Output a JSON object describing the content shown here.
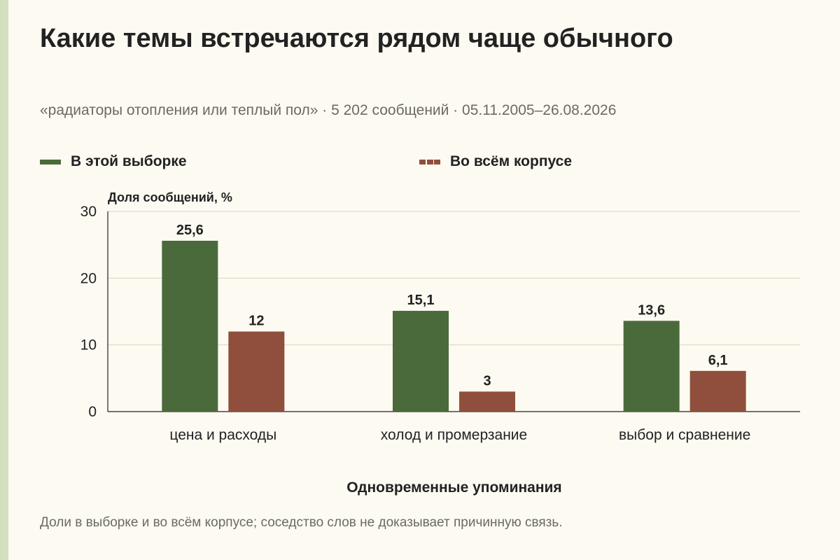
{
  "title": "Какие темы встречаются рядом чаще обычного",
  "subtitle": "«радиаторы отопления или теплый пол» · 5 202 сообщений · 05.11.2005–26.08.2026",
  "footnote": "Доли в выборке и во всём корпусе; соседство слов не доказывает причинную связь.",
  "colors": {
    "sample": "#4a6a3b",
    "corpus": "#8f4f3c",
    "accent_bar": "#d3dfbf"
  },
  "chart_data": {
    "type": "bar",
    "categories": [
      "цена и расходы",
      "холод и промерзание",
      "выбор и сравнение"
    ],
    "series": [
      {
        "name": "В этой выборке",
        "values": [
          25.6,
          15.1,
          13.6
        ],
        "labels": [
          "25,6",
          "15,1",
          "13,6"
        ]
      },
      {
        "name": "Во всём корпусе",
        "values": [
          12,
          3,
          6.1
        ],
        "labels": [
          "12",
          "3",
          "6,1"
        ]
      }
    ],
    "ylabel": "Доля сообщений, %",
    "xlabel": "Одновременные упоминания",
    "ylim": [
      0,
      30
    ],
    "yticks": [
      0,
      10,
      20,
      30
    ],
    "ytick_labels": [
      "0",
      "10",
      "20",
      "30"
    ],
    "grid": true,
    "legend_position": "top-left"
  }
}
